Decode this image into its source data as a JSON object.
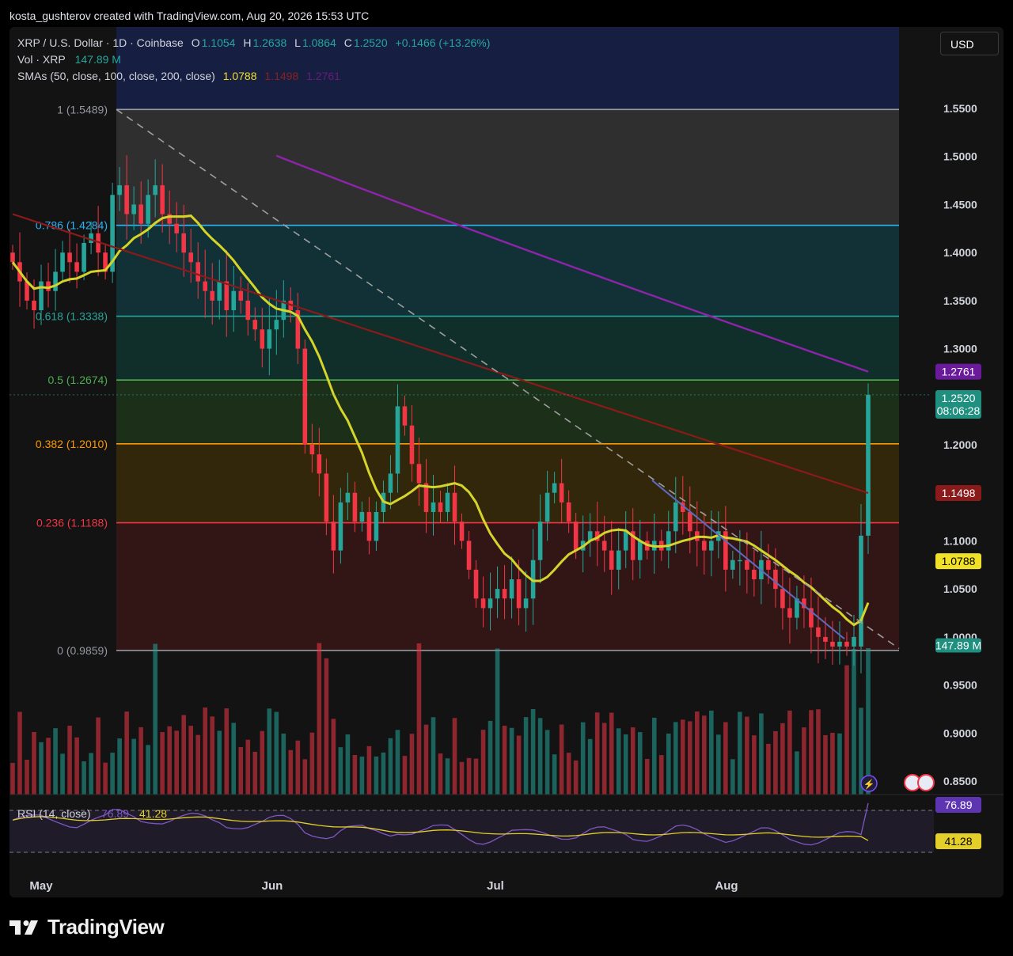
{
  "caption": "kosta_gushterov created with TradingView.com, Aug 20, 2026 15:53 UTC",
  "legend": {
    "symbol": "XRP / U.S. Dollar · 1D · Coinbase",
    "o_label": "O",
    "o": "1.1054",
    "h_label": "H",
    "h": "1.2638",
    "l_label": "L",
    "l": "1.0864",
    "c_label": "C",
    "c": "1.2520",
    "change": "+0.1466 (+13.26%)",
    "vol_label": "Vol · XRP",
    "vol": "147.89 M",
    "sma_label": "SMAs (50, close, 100, close, 200, close)",
    "sma50": "1.0788",
    "sma100": "1.1498",
    "sma200": "1.2761"
  },
  "currency_button": "USD",
  "price_axis": [
    "1.5500",
    "1.5000",
    "1.4500",
    "1.4000",
    "1.3500",
    "1.3000",
    "1.2000",
    "1.1000",
    "1.0500",
    "1.0000",
    "0.9500",
    "0.9000",
    "0.8500"
  ],
  "fib_levels": [
    {
      "label": "1 (1.5489)",
      "color": "#9598a1"
    },
    {
      "label": "0.786 (1.4284)",
      "color": "#29b6f6"
    },
    {
      "label": "0.618 (1.3338)",
      "color": "#26a69a"
    },
    {
      "label": "0.5 (1.2674)",
      "color": "#4caf50"
    },
    {
      "label": "0.382 (1.2010)",
      "color": "#ff9800"
    },
    {
      "label": "0.236 (1.1188)",
      "color": "#f23645"
    },
    {
      "label": "0 (0.9859)",
      "color": "#9598a1"
    }
  ],
  "price_tags": {
    "sma200": "1.2761",
    "last": "1.2520",
    "countdown": "08:06:28",
    "sma100": "1.1498",
    "sma50": "1.0788",
    "volume": "147.89 M"
  },
  "rsi": {
    "label": "RSI (14, close)",
    "value": "76.89",
    "ma": "41.28"
  },
  "time_axis": [
    "May",
    "Jun",
    "Jul",
    "Aug"
  ],
  "brand": "TradingView",
  "colors": {
    "up": "#26a69a",
    "down": "#f23645",
    "sma50": "#d4d42a",
    "sma100": "#8b1a1a",
    "sma200": "#8e24aa",
    "rsi": "#7e57c2",
    "rsi_ma": "#e4cf2a"
  },
  "chart_data": {
    "type": "candlestick",
    "title": "XRP / U.S. Dollar · 1D · Coinbase",
    "ylim": [
      0.835,
      1.62
    ],
    "last_candle": {
      "open": 1.1054,
      "high": 1.2638,
      "low": 1.0864,
      "close": 1.252,
      "volume": "147.89 M"
    },
    "sma": [
      {
        "name": "SMA 50",
        "value": 1.0788
      },
      {
        "name": "SMA 100",
        "value": 1.1498
      },
      {
        "name": "SMA 200",
        "value": 1.2761
      }
    ],
    "fibonacci": [
      {
        "level": 1,
        "price": 1.5489
      },
      {
        "level": 0.786,
        "price": 1.4284
      },
      {
        "level": 0.618,
        "price": 1.3338
      },
      {
        "level": 0.5,
        "price": 1.2674
      },
      {
        "level": 0.382,
        "price": 1.201
      },
      {
        "level": 0.236,
        "price": 1.1188
      },
      {
        "level": 0,
        "price": 0.9859
      }
    ],
    "closes": [
      1.39,
      1.37,
      1.35,
      1.34,
      1.37,
      1.36,
      1.38,
      1.4,
      1.39,
      1.38,
      1.41,
      1.42,
      1.4,
      1.38,
      1.46,
      1.47,
      1.44,
      1.45,
      1.43,
      1.46,
      1.47,
      1.44,
      1.43,
      1.42,
      1.4,
      1.39,
      1.37,
      1.36,
      1.35,
      1.37,
      1.34,
      1.36,
      1.35,
      1.33,
      1.32,
      1.3,
      1.32,
      1.33,
      1.35,
      1.34,
      1.3,
      1.2,
      1.19,
      1.17,
      1.12,
      1.09,
      1.14,
      1.15,
      1.12,
      1.13,
      1.1,
      1.13,
      1.15,
      1.17,
      1.24,
      1.22,
      1.18,
      1.16,
      1.13,
      1.14,
      1.13,
      1.15,
      1.12,
      1.1,
      1.07,
      1.04,
      1.03,
      1.04,
      1.05,
      1.04,
      1.06,
      1.03,
      1.04,
      1.08,
      1.12,
      1.15,
      1.16,
      1.14,
      1.12,
      1.09,
      1.1,
      1.11,
      1.1,
      1.09,
      1.07,
      1.09,
      1.11,
      1.08,
      1.1,
      1.09,
      1.1,
      1.09,
      1.11,
      1.14,
      1.13,
      1.11,
      1.1,
      1.09,
      1.1,
      1.11,
      1.07,
      1.08,
      1.08,
      1.07,
      1.06,
      1.08,
      1.07,
      1.05,
      1.03,
      1.02,
      1.04,
      1.03,
      1.01,
      1.0,
      0.995,
      0.99,
      0.995,
      0.99,
      1.0,
      1.1054,
      1.252
    ]
  }
}
